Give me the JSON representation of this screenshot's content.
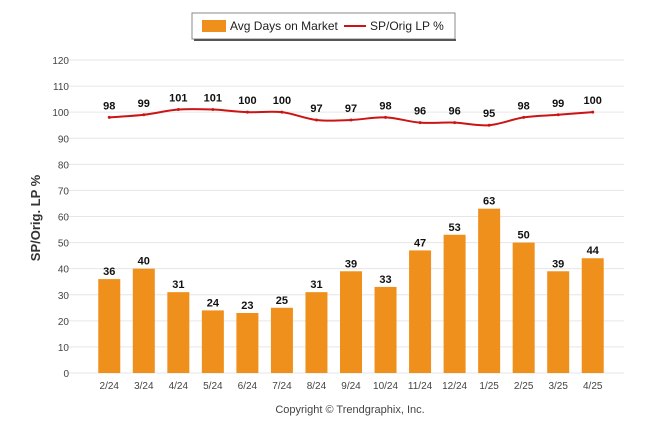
{
  "chart_data": {
    "type": "bar",
    "categories": [
      "2/24",
      "3/24",
      "4/24",
      "5/24",
      "6/24",
      "7/24",
      "8/24",
      "9/24",
      "10/24",
      "11/24",
      "12/24",
      "1/25",
      "2/25",
      "3/25",
      "4/25"
    ],
    "series": [
      {
        "name": "Avg Days on Market",
        "type": "bar",
        "color": "#f0901c",
        "values": [
          36,
          40,
          31,
          24,
          23,
          25,
          31,
          39,
          33,
          47,
          53,
          63,
          50,
          39,
          44
        ]
      },
      {
        "name": "SP/Orig LP %",
        "type": "line",
        "color": "#cc1414",
        "values": [
          98,
          99,
          101,
          101,
          100,
          100,
          97,
          97,
          98,
          96,
          96,
          95,
          98,
          99,
          100
        ]
      }
    ],
    "ylabel": "SP/Orig. LP %",
    "xlabel": "",
    "ylim": [
      0,
      120
    ],
    "yticks": [
      0,
      10,
      20,
      30,
      40,
      50,
      60,
      70,
      80,
      90,
      100,
      110,
      120
    ],
    "grid": true,
    "legend_position": "top-center"
  },
  "footer": "Copyright © Trendgraphix, Inc."
}
